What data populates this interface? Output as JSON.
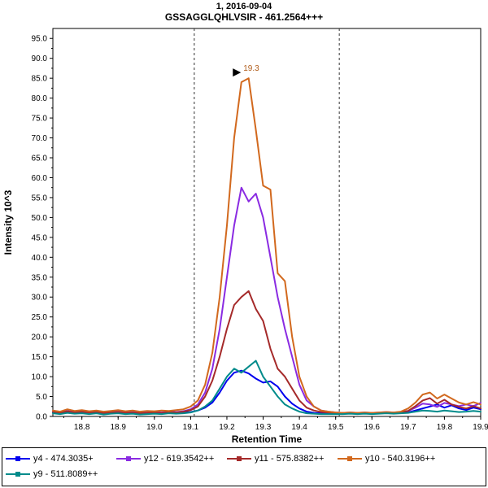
{
  "header": {
    "title_line1": "1, 2016-09-04",
    "title_line2": "GSSAGGLQHLVSIR - 461.2564+++"
  },
  "chart_data": {
    "type": "line",
    "title": "1, 2016-09-04",
    "subtitle": "GSSAGGLQHLVSIR - 461.2564+++",
    "xlabel": "Retention Time",
    "ylabel": "Intensity 10^3",
    "xlim": [
      18.72,
      19.9
    ],
    "ylim": [
      0,
      97.5
    ],
    "x_ticks": [
      18.8,
      18.9,
      19.0,
      19.1,
      19.2,
      19.3,
      19.4,
      19.5,
      19.6,
      19.7,
      19.8,
      19.9
    ],
    "y_tick_min": 0,
    "y_tick_max": 95,
    "y_tick_step": 5,
    "grid": false,
    "legend_position": "bottom",
    "boundaries": [
      19.11,
      19.51
    ],
    "peak_annotation": {
      "x": 19.25,
      "y": 85,
      "label": "19.3",
      "color": "#b05c1a"
    },
    "x": [
      18.72,
      18.74,
      18.76,
      18.78,
      18.8,
      18.82,
      18.84,
      18.86,
      18.88,
      18.9,
      18.92,
      18.94,
      18.96,
      18.98,
      19.0,
      19.02,
      19.04,
      19.06,
      19.08,
      19.1,
      19.12,
      19.14,
      19.16,
      19.18,
      19.2,
      19.22,
      19.24,
      19.26,
      19.28,
      19.3,
      19.32,
      19.34,
      19.36,
      19.38,
      19.4,
      19.42,
      19.44,
      19.46,
      19.48,
      19.5,
      19.52,
      19.54,
      19.56,
      19.58,
      19.6,
      19.62,
      19.64,
      19.66,
      19.68,
      19.7,
      19.72,
      19.74,
      19.76,
      19.78,
      19.8,
      19.82,
      19.84,
      19.86,
      19.88,
      19.9
    ],
    "series": [
      {
        "name": "y4 - 474.3035+",
        "color": "#0000EE",
        "values": [
          1.0,
          0.8,
          1.2,
          0.9,
          1.1,
          0.8,
          1.0,
          0.7,
          0.9,
          1.0,
          0.8,
          0.9,
          0.7,
          0.8,
          0.9,
          0.8,
          1.0,
          0.9,
          1.0,
          1.1,
          1.5,
          2.2,
          3.5,
          6.0,
          9.0,
          11.0,
          11.5,
          10.8,
          9.5,
          8.5,
          8.8,
          7.5,
          5.0,
          3.2,
          2.0,
          1.2,
          0.9,
          0.8,
          0.7,
          0.8,
          0.7,
          0.8,
          0.7,
          0.8,
          0.7,
          0.8,
          0.9,
          0.8,
          0.9,
          1.0,
          1.5,
          2.0,
          2.5,
          3.0,
          2.2,
          2.8,
          2.0,
          1.6,
          2.2,
          1.8
        ]
      },
      {
        "name": "y12 - 619.3542++",
        "color": "#8A2BE2",
        "values": [
          1.2,
          1.0,
          1.4,
          1.1,
          1.3,
          1.0,
          1.2,
          0.9,
          1.1,
          1.2,
          1.0,
          1.1,
          0.9,
          1.0,
          1.1,
          1.0,
          1.2,
          1.1,
          1.3,
          1.8,
          3.0,
          6.0,
          12.0,
          22.0,
          35.0,
          48.0,
          57.5,
          54.0,
          56.0,
          50.0,
          40.0,
          30.0,
          22.0,
          15.0,
          8.0,
          4.0,
          2.5,
          1.5,
          1.2,
          1.0,
          0.9,
          1.0,
          0.9,
          1.0,
          0.9,
          1.0,
          1.1,
          1.0,
          1.1,
          1.4,
          2.2,
          3.2,
          3.0,
          2.4,
          3.4,
          3.0,
          2.6,
          3.0,
          2.6,
          3.4
        ]
      },
      {
        "name": "y11 - 575.8382++",
        "color": "#A52A2A",
        "values": [
          1.1,
          0.9,
          1.3,
          1.0,
          1.2,
          0.9,
          1.1,
          0.8,
          1.0,
          1.1,
          0.9,
          1.0,
          0.8,
          0.9,
          1.0,
          0.9,
          1.1,
          1.0,
          1.2,
          1.6,
          2.5,
          5.0,
          9.0,
          15.0,
          22.0,
          28.0,
          30.0,
          31.5,
          27.0,
          24.0,
          17.0,
          12.0,
          10.0,
          7.0,
          4.0,
          2.2,
          1.5,
          1.1,
          1.0,
          0.9,
          0.8,
          0.9,
          0.8,
          0.9,
          0.8,
          0.9,
          1.0,
          0.9,
          1.0,
          1.4,
          2.6,
          4.0,
          4.6,
          3.2,
          4.2,
          3.0,
          2.4,
          2.0,
          2.6,
          2.0
        ]
      },
      {
        "name": "y10 - 540.3196++",
        "color": "#D2691E",
        "values": [
          1.5,
          1.2,
          1.8,
          1.4,
          1.6,
          1.3,
          1.5,
          1.2,
          1.4,
          1.6,
          1.3,
          1.5,
          1.2,
          1.4,
          1.3,
          1.5,
          1.4,
          1.6,
          1.8,
          2.5,
          4.0,
          8.0,
          16.0,
          30.0,
          48.0,
          70.0,
          84.0,
          85.0,
          72.0,
          58.0,
          57.0,
          36.0,
          34.0,
          20.0,
          10.0,
          5.0,
          2.5,
          1.5,
          1.2,
          1.0,
          0.9,
          1.0,
          0.9,
          1.0,
          0.9,
          1.0,
          1.1,
          1.0,
          1.2,
          2.0,
          3.5,
          5.5,
          6.0,
          4.5,
          5.5,
          4.5,
          3.5,
          3.0,
          3.6,
          3.0
        ]
      },
      {
        "name": "y9 - 511.8089++",
        "color": "#008B8B",
        "values": [
          0.8,
          0.6,
          0.9,
          0.7,
          0.8,
          0.6,
          0.8,
          0.5,
          0.7,
          0.8,
          0.6,
          0.7,
          0.5,
          0.6,
          0.7,
          0.6,
          0.8,
          0.7,
          0.8,
          1.0,
          1.5,
          2.5,
          4.0,
          7.0,
          10.0,
          12.0,
          11.0,
          12.5,
          14.0,
          10.0,
          7.5,
          5.0,
          3.0,
          2.0,
          1.2,
          0.8,
          0.7,
          0.6,
          0.6,
          0.6,
          0.6,
          0.7,
          0.6,
          0.7,
          0.6,
          0.7,
          0.8,
          0.7,
          0.8,
          0.9,
          1.2,
          1.5,
          1.4,
          1.2,
          1.5,
          1.3,
          1.1,
          1.2,
          1.4,
          1.2
        ]
      }
    ]
  }
}
